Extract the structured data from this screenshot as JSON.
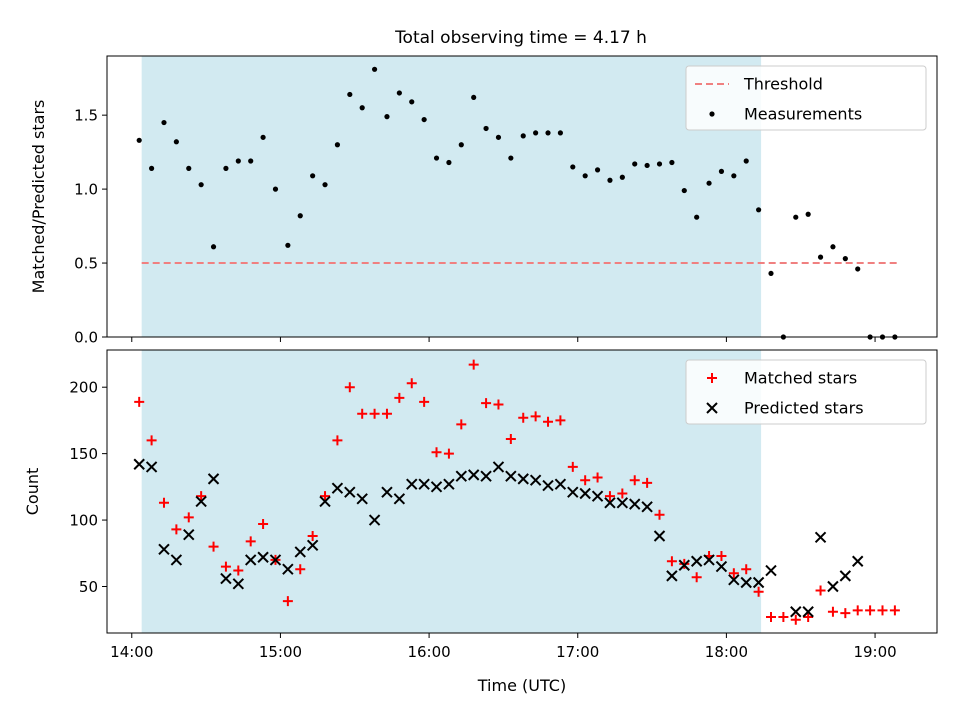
{
  "title": "Total observing time = 4.17 h",
  "chart_data": [
    {
      "type": "scatter",
      "title": "Total observing time = 4.17 h",
      "xlabel": "",
      "ylabel": "Matched/Predicted stars",
      "xlim": [
        "13:50",
        "19:25"
      ],
      "ylim": [
        0,
        1.9
      ],
      "yticks": [
        0.0,
        0.5,
        1.0,
        1.5
      ],
      "ytick_labels": [
        "0.0",
        "0.5",
        "1.0",
        "1.5"
      ],
      "shaded_span": [
        "14:04",
        "18:14"
      ],
      "shaded_color": "#add8e6",
      "legend_position": "top-right",
      "threshold": {
        "name": "Threshold",
        "value": 0.5,
        "x": [
          "14:04",
          "19:10"
        ],
        "color": "#f08080",
        "style": "dashed"
      },
      "series": [
        {
          "name": "Measurements",
          "color": "#000000",
          "marker": "dot",
          "points": [
            [
              "14:03",
              1.33
            ],
            [
              "14:08",
              1.14
            ],
            [
              "14:13",
              1.45
            ],
            [
              "14:18",
              1.32
            ],
            [
              "14:23",
              1.14
            ],
            [
              "14:28",
              1.03
            ],
            [
              "14:33",
              0.61
            ],
            [
              "14:38",
              1.14
            ],
            [
              "14:43",
              1.19
            ],
            [
              "14:48",
              1.19
            ],
            [
              "14:53",
              1.35
            ],
            [
              "14:58",
              1.0
            ],
            [
              "15:03",
              0.62
            ],
            [
              "15:08",
              0.82
            ],
            [
              "15:13",
              1.09
            ],
            [
              "15:18",
              1.03
            ],
            [
              "15:23",
              1.3
            ],
            [
              "15:28",
              1.64
            ],
            [
              "15:33",
              1.55
            ],
            [
              "15:38",
              1.81
            ],
            [
              "15:43",
              1.49
            ],
            [
              "15:48",
              1.65
            ],
            [
              "15:53",
              1.59
            ],
            [
              "15:58",
              1.47
            ],
            [
              "16:03",
              1.21
            ],
            [
              "16:08",
              1.18
            ],
            [
              "16:13",
              1.3
            ],
            [
              "16:18",
              1.62
            ],
            [
              "16:23",
              1.41
            ],
            [
              "16:28",
              1.35
            ],
            [
              "16:33",
              1.21
            ],
            [
              "16:38",
              1.36
            ],
            [
              "16:43",
              1.38
            ],
            [
              "16:48",
              1.38
            ],
            [
              "16:53",
              1.38
            ],
            [
              "16:58",
              1.15
            ],
            [
              "17:03",
              1.09
            ],
            [
              "17:08",
              1.13
            ],
            [
              "17:13",
              1.06
            ],
            [
              "17:18",
              1.08
            ],
            [
              "17:23",
              1.17
            ],
            [
              "17:28",
              1.16
            ],
            [
              "17:33",
              1.17
            ],
            [
              "17:38",
              1.18
            ],
            [
              "17:43",
              0.99
            ],
            [
              "17:48",
              0.81
            ],
            [
              "17:53",
              1.04
            ],
            [
              "17:58",
              1.12
            ],
            [
              "18:03",
              1.09
            ],
            [
              "18:08",
              1.19
            ],
            [
              "18:13",
              0.86
            ],
            [
              "18:18",
              0.43
            ],
            [
              "18:23",
              0.0
            ],
            [
              "18:28",
              0.81
            ],
            [
              "18:33",
              0.83
            ],
            [
              "18:38",
              0.54
            ],
            [
              "18:43",
              0.61
            ],
            [
              "18:48",
              0.53
            ],
            [
              "18:53",
              0.46
            ],
            [
              "18:58",
              0.0
            ],
            [
              "19:03",
              0.0
            ],
            [
              "19:08",
              0.0
            ]
          ]
        }
      ]
    },
    {
      "type": "scatter",
      "title": "",
      "xlabel": "Time (UTC)",
      "ylabel": "Count",
      "xlim": [
        "13:50",
        "19:25"
      ],
      "ylim": [
        15,
        228
      ],
      "yticks": [
        50,
        100,
        150,
        200
      ],
      "ytick_labels": [
        "50",
        "100",
        "150",
        "200"
      ],
      "xticks": [
        "14:00",
        "15:00",
        "16:00",
        "17:00",
        "18:00",
        "19:00"
      ],
      "xtick_labels": [
        "14:00",
        "15:00",
        "16:00",
        "17:00",
        "18:00",
        "19:00"
      ],
      "shaded_span": [
        "14:04",
        "18:14"
      ],
      "shaded_color": "#add8e6",
      "legend_position": "top-right",
      "series": [
        {
          "name": "Matched stars",
          "color": "#ff0000",
          "marker": "plus",
          "points": [
            [
              "14:03",
              189
            ],
            [
              "14:08",
              160
            ],
            [
              "14:13",
              113
            ],
            [
              "14:18",
              93
            ],
            [
              "14:23",
              102
            ],
            [
              "14:28",
              118
            ],
            [
              "14:33",
              80
            ],
            [
              "14:38",
              65
            ],
            [
              "14:43",
              62
            ],
            [
              "14:48",
              84
            ],
            [
              "14:53",
              97
            ],
            [
              "14:58",
              70
            ],
            [
              "15:03",
              39
            ],
            [
              "15:08",
              63
            ],
            [
              "15:13",
              88
            ],
            [
              "15:18",
              118
            ],
            [
              "15:23",
              160
            ],
            [
              "15:28",
              200
            ],
            [
              "15:33",
              180
            ],
            [
              "15:38",
              180
            ],
            [
              "15:43",
              180
            ],
            [
              "15:48",
              192
            ],
            [
              "15:53",
              203
            ],
            [
              "15:58",
              189
            ],
            [
              "16:03",
              151
            ],
            [
              "16:08",
              150
            ],
            [
              "16:13",
              172
            ],
            [
              "16:18",
              217
            ],
            [
              "16:23",
              188
            ],
            [
              "16:28",
              187
            ],
            [
              "16:33",
              161
            ],
            [
              "16:38",
              177
            ],
            [
              "16:43",
              178
            ],
            [
              "16:48",
              174
            ],
            [
              "16:53",
              175
            ],
            [
              "16:58",
              140
            ],
            [
              "17:03",
              130
            ],
            [
              "17:08",
              132
            ],
            [
              "17:13",
              118
            ],
            [
              "17:18",
              120
            ],
            [
              "17:23",
              130
            ],
            [
              "17:28",
              128
            ],
            [
              "17:33",
              104
            ],
            [
              "17:38",
              69
            ],
            [
              "17:43",
              67
            ],
            [
              "17:48",
              57
            ],
            [
              "17:53",
              73
            ],
            [
              "17:58",
              73
            ],
            [
              "18:03",
              60
            ],
            [
              "18:08",
              63
            ],
            [
              "18:13",
              46
            ],
            [
              "18:18",
              27
            ],
            [
              "18:23",
              27
            ],
            [
              "18:28",
              25
            ],
            [
              "18:33",
              27
            ],
            [
              "18:38",
              47
            ],
            [
              "18:43",
              31
            ],
            [
              "18:48",
              30
            ],
            [
              "18:53",
              32
            ],
            [
              "18:58",
              32
            ],
            [
              "19:03",
              32
            ],
            [
              "19:08",
              32
            ]
          ]
        },
        {
          "name": "Predicted stars",
          "color": "#000000",
          "marker": "x",
          "points": [
            [
              "14:03",
              142
            ],
            [
              "14:08",
              140
            ],
            [
              "14:13",
              78
            ],
            [
              "14:18",
              70
            ],
            [
              "14:23",
              89
            ],
            [
              "14:28",
              114
            ],
            [
              "14:33",
              131
            ],
            [
              "14:38",
              56
            ],
            [
              "14:43",
              52
            ],
            [
              "14:48",
              70
            ],
            [
              "14:53",
              72
            ],
            [
              "14:58",
              70
            ],
            [
              "15:03",
              63
            ],
            [
              "15:08",
              76
            ],
            [
              "15:13",
              81
            ],
            [
              "15:18",
              114
            ],
            [
              "15:23",
              124
            ],
            [
              "15:28",
              121
            ],
            [
              "15:33",
              116
            ],
            [
              "15:38",
              100
            ],
            [
              "15:43",
              121
            ],
            [
              "15:48",
              116
            ],
            [
              "15:53",
              127
            ],
            [
              "15:58",
              127
            ],
            [
              "16:03",
              125
            ],
            [
              "16:08",
              127
            ],
            [
              "16:13",
              133
            ],
            [
              "16:18",
              134
            ],
            [
              "16:23",
              133
            ],
            [
              "16:28",
              140
            ],
            [
              "16:33",
              133
            ],
            [
              "16:38",
              131
            ],
            [
              "16:43",
              130
            ],
            [
              "16:48",
              126
            ],
            [
              "16:53",
              127
            ],
            [
              "16:58",
              121
            ],
            [
              "17:03",
              120
            ],
            [
              "17:08",
              118
            ],
            [
              "17:13",
              113
            ],
            [
              "17:18",
              113
            ],
            [
              "17:23",
              112
            ],
            [
              "17:28",
              110
            ],
            [
              "17:33",
              88
            ],
            [
              "17:38",
              58
            ],
            [
              "17:43",
              66
            ],
            [
              "17:48",
              69
            ],
            [
              "17:53",
              70
            ],
            [
              "17:58",
              65
            ],
            [
              "18:03",
              55
            ],
            [
              "18:08",
              53
            ],
            [
              "18:13",
              53
            ],
            [
              "18:18",
              62
            ],
            [
              "18:23",
              null
            ],
            [
              "18:28",
              31
            ],
            [
              "18:33",
              31
            ],
            [
              "18:38",
              87
            ],
            [
              "18:43",
              50
            ],
            [
              "18:48",
              58
            ],
            [
              "18:53",
              69
            ],
            [
              "18:58",
              null
            ],
            [
              "19:03",
              null
            ],
            [
              "19:08",
              null
            ]
          ]
        }
      ]
    }
  ]
}
